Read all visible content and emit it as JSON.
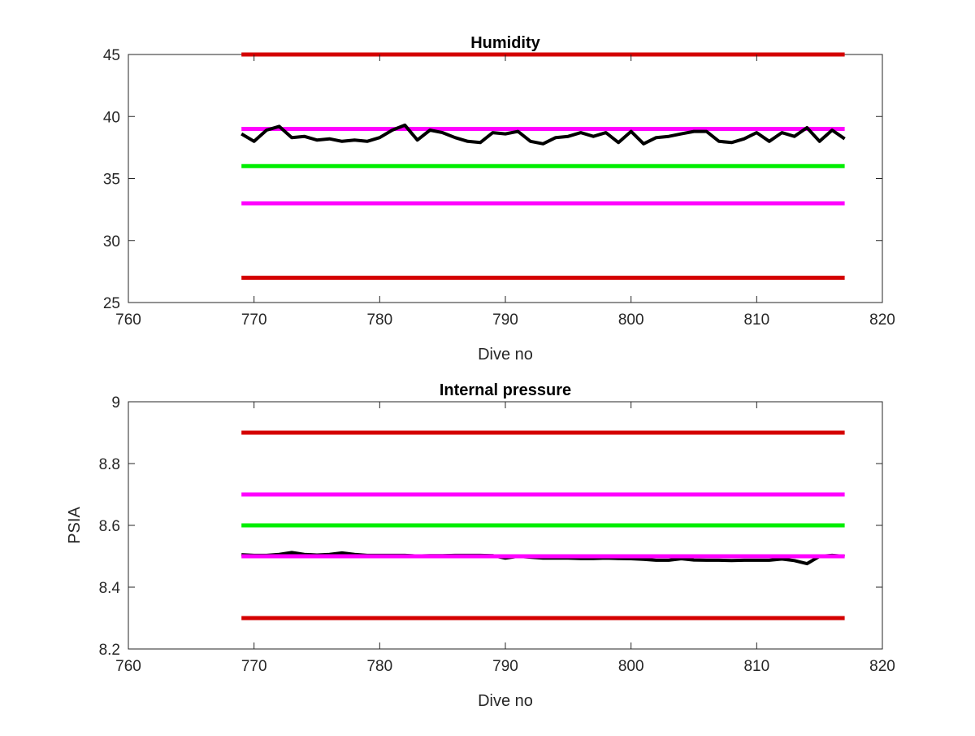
{
  "chart_data": [
    {
      "type": "line",
      "title": "Humidity",
      "xlabel": "Dive no",
      "ylabel": "",
      "xlim": [
        760,
        820
      ],
      "ylim": [
        25,
        45
      ],
      "xticks": [
        "760",
        "770",
        "780",
        "790",
        "800",
        "810",
        "820"
      ],
      "yticks": [
        "25",
        "30",
        "35",
        "40",
        "45"
      ],
      "grid": false,
      "series": [
        {
          "role": "limit",
          "color": "#d40000",
          "x": [
            769,
            817
          ],
          "y": [
            45,
            45
          ]
        },
        {
          "role": "limit",
          "color": "#d40000",
          "x": [
            769,
            817
          ],
          "y": [
            27,
            27
          ]
        },
        {
          "role": "warning",
          "color": "#ff00ff",
          "x": [
            769,
            817
          ],
          "y": [
            39,
            39
          ]
        },
        {
          "role": "warning",
          "color": "#ff00ff",
          "x": [
            769,
            817
          ],
          "y": [
            33,
            33
          ]
        },
        {
          "role": "nominal",
          "color": "#00ee00",
          "x": [
            769,
            817
          ],
          "y": [
            36,
            36
          ]
        },
        {
          "role": "measured",
          "color": "#000000",
          "x": [
            769,
            770,
            771,
            772,
            773,
            774,
            775,
            776,
            777,
            778,
            779,
            780,
            781,
            782,
            783,
            784,
            785,
            786,
            787,
            788,
            789,
            790,
            791,
            792,
            793,
            794,
            795,
            796,
            797,
            798,
            799,
            800,
            801,
            802,
            803,
            804,
            805,
            806,
            807,
            808,
            809,
            810,
            811,
            812,
            813,
            814,
            815,
            816,
            817
          ],
          "y": [
            38.6,
            38.0,
            38.9,
            39.2,
            38.3,
            38.4,
            38.1,
            38.2,
            38.0,
            38.1,
            38.0,
            38.3,
            38.9,
            39.3,
            38.1,
            38.9,
            38.7,
            38.3,
            38.0,
            37.9,
            38.7,
            38.6,
            38.8,
            38.0,
            37.8,
            38.3,
            38.4,
            38.7,
            38.4,
            38.7,
            37.9,
            38.8,
            37.8,
            38.3,
            38.4,
            38.6,
            38.8,
            38.8,
            38.0,
            37.9,
            38.2,
            38.7,
            38.0,
            38.7,
            38.4,
            39.1,
            38.0,
            38.9,
            38.2
          ]
        }
      ]
    },
    {
      "type": "line",
      "title": "Internal pressure",
      "xlabel": "Dive no",
      "ylabel": "PSIA",
      "xlim": [
        760,
        820
      ],
      "ylim": [
        8.2,
        9
      ],
      "xticks": [
        "760",
        "770",
        "780",
        "790",
        "800",
        "810",
        "820"
      ],
      "yticks": [
        "8.2",
        "8.4",
        "8.6",
        "8.8",
        "9"
      ],
      "grid": false,
      "series": [
        {
          "role": "limit",
          "color": "#d40000",
          "x": [
            769,
            817
          ],
          "y": [
            8.9,
            8.9
          ]
        },
        {
          "role": "limit",
          "color": "#d40000",
          "x": [
            769,
            817
          ],
          "y": [
            8.3,
            8.3
          ]
        },
        {
          "role": "warning",
          "color": "#ff00ff",
          "x": [
            769,
            817
          ],
          "y": [
            8.7,
            8.7
          ]
        },
        {
          "role": "nominal",
          "color": "#00ee00",
          "x": [
            769,
            817
          ],
          "y": [
            8.6,
            8.6
          ]
        },
        {
          "role": "measured",
          "color": "#000000",
          "x": [
            769,
            770,
            771,
            772,
            773,
            774,
            775,
            776,
            777,
            778,
            779,
            780,
            781,
            782,
            783,
            784,
            785,
            786,
            787,
            788,
            789,
            790,
            791,
            792,
            793,
            794,
            795,
            796,
            797,
            798,
            799,
            800,
            801,
            802,
            803,
            804,
            805,
            806,
            807,
            808,
            809,
            810,
            811,
            812,
            813,
            814,
            815,
            816,
            817
          ],
          "y": [
            8.505,
            8.503,
            8.503,
            8.506,
            8.512,
            8.506,
            8.504,
            8.506,
            8.511,
            8.506,
            8.503,
            8.503,
            8.503,
            8.503,
            8.501,
            8.502,
            8.502,
            8.503,
            8.503,
            8.503,
            8.502,
            8.494,
            8.5,
            8.497,
            8.494,
            8.494,
            8.494,
            8.493,
            8.493,
            8.494,
            8.493,
            8.492,
            8.49,
            8.487,
            8.487,
            8.492,
            8.488,
            8.487,
            8.487,
            8.486,
            8.487,
            8.487,
            8.487,
            8.491,
            8.486,
            8.476,
            8.5,
            8.503,
            8.5
          ]
        },
        {
          "role": "warning",
          "color": "#ff00ff",
          "x": [
            769,
            817
          ],
          "y": [
            8.5,
            8.5
          ]
        }
      ]
    }
  ]
}
